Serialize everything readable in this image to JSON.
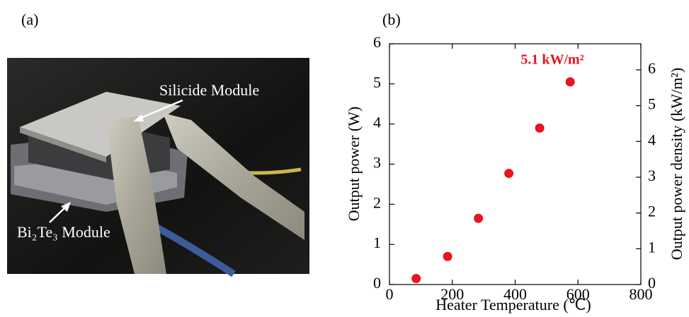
{
  "panel_a": {
    "label": "(a)",
    "top_module": "Silicide Module",
    "bottom_module": "Bi₂Te₃ Module"
  },
  "chart_data": {
    "type": "scatter",
    "panel_label": "(b)",
    "x_label": "Heater Temperature (℃)",
    "y_label": "Output power (W)",
    "y2_label": "Output power density (kW/m²)",
    "annotation": "5.1 kW/m²",
    "series": [
      {
        "color": "#e8141e",
        "x": [
          85,
          185,
          283,
          380,
          478,
          575
        ],
        "values": [
          0.15,
          0.7,
          1.65,
          2.77,
          3.9,
          5.05
        ]
      }
    ],
    "xlim": [
      0,
      800
    ],
    "xticks": [
      0,
      200,
      400,
      600,
      800
    ],
    "ylim": [
      0,
      6
    ],
    "yticks": [
      0,
      1,
      2,
      3,
      4,
      5,
      6
    ],
    "y2lim": [
      0,
      6.73
    ],
    "y2ticks": [
      0,
      1,
      2,
      3,
      4,
      5,
      6
    ]
  }
}
